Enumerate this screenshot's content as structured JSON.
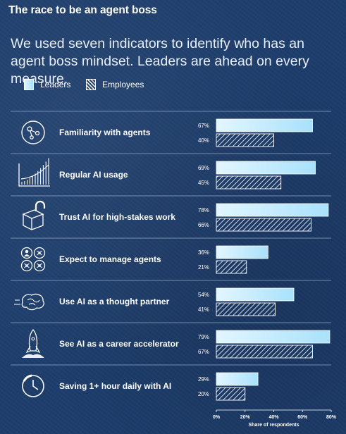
{
  "title": "The race to be an agent boss",
  "subtitle": "We used seven indicators to identify who has an agent boss mindset. Leaders are ahead on every measure.",
  "colors": {
    "background": "#1d3d6b",
    "leaders_fill_start": "#e2f6ff",
    "leaders_fill_end": "#a9e1fb",
    "employees_hatch": "#ffffff",
    "divider": "#8fa7c9"
  },
  "legend": {
    "leaders": "Leaders",
    "employees": "Employees"
  },
  "chart_data": {
    "type": "bar",
    "orientation": "horizontal",
    "categories": [
      "Familiarity with agents",
      "Regular AI usage",
      "Trust AI for high-stakes work",
      "Expect to manage agents",
      "Use AI as a thought partner",
      "See AI as a career accelerator",
      "Saving 1+ hour daily with AI"
    ],
    "icons": [
      "agent-network-icon",
      "usage-chart-icon",
      "unlocked-box-icon",
      "agent-team-icon",
      "brain-icon",
      "rocket-icon",
      "clock-icon"
    ],
    "series": [
      {
        "name": "Leaders",
        "values": [
          67,
          69,
          78,
          36,
          54,
          79,
          29
        ]
      },
      {
        "name": "Employees",
        "values": [
          40,
          45,
          66,
          21,
          41,
          67,
          20
        ]
      }
    ],
    "value_labels": {
      "Leaders": [
        "67%",
        "69%",
        "78%",
        "36%",
        "54%",
        "79%",
        "29%"
      ],
      "Employees": [
        "40%",
        "45%",
        "66%",
        "21%",
        "41%",
        "67%",
        "20%"
      ]
    },
    "xlim": [
      0,
      80
    ],
    "xticks": [
      "0%",
      "20%",
      "40%",
      "60%",
      "80%"
    ],
    "xlabel": "Share of respondents",
    "ylabel": "",
    "legend_position": "top-left",
    "grid": false
  }
}
